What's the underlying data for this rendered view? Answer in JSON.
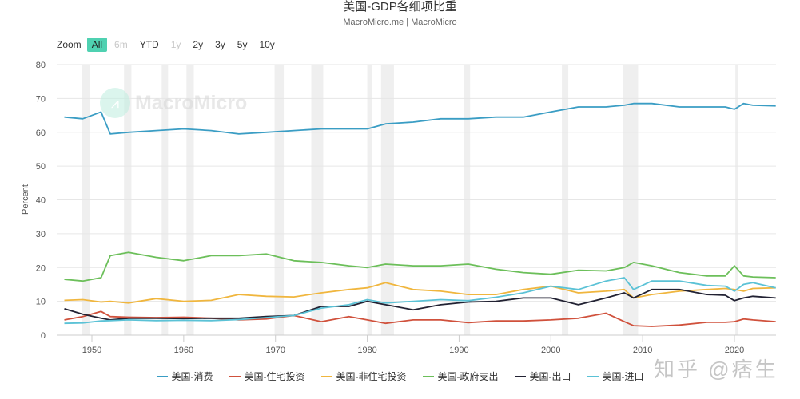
{
  "title": "美国-GDP各细项比重",
  "subtitle": "MacroMicro.me | MacroMicro",
  "zoom": {
    "label": "Zoom",
    "buttons": [
      {
        "label": "All",
        "state": "active"
      },
      {
        "label": "6m",
        "state": "disabled"
      },
      {
        "label": "YTD",
        "state": "normal"
      },
      {
        "label": "1y",
        "state": "disabled"
      },
      {
        "label": "2y",
        "state": "normal"
      },
      {
        "label": "3y",
        "state": "normal"
      },
      {
        "label": "5y",
        "state": "normal"
      },
      {
        "label": "10y",
        "state": "normal"
      }
    ]
  },
  "watermark_logo": "MacroMicro",
  "watermark_text": "知乎 @痞生",
  "colors": {
    "consumption": "#3a9dc4",
    "residential": "#d0513c",
    "nonresidential": "#f0b63e",
    "government": "#6cbf5a",
    "exports": "#222233",
    "imports": "#5bc2d6",
    "recession": "#efefef",
    "active_button": "#4fd1b1"
  },
  "chart_data": {
    "type": "line",
    "title": "美国-GDP各细项比重",
    "subtitle": "MacroMicro.me | MacroMicro",
    "xlabel": "",
    "ylabel": "Percent",
    "ylim": [
      0,
      80
    ],
    "yticks": [
      0,
      10,
      20,
      30,
      40,
      50,
      60,
      70,
      80
    ],
    "xticks": [
      1950,
      1960,
      1970,
      1980,
      1990,
      2000,
      2010,
      2020
    ],
    "xlim": [
      1947,
      2024.5
    ],
    "grid": true,
    "legend_position": "bottom",
    "recession_bands": [
      [
        1948.9,
        1949.8
      ],
      [
        1953.5,
        1954.3
      ],
      [
        1957.6,
        1958.3
      ],
      [
        1960.3,
        1961.1
      ],
      [
        1969.9,
        1970.9
      ],
      [
        1973.9,
        1975.2
      ],
      [
        1980.0,
        1980.5
      ],
      [
        1981.5,
        1982.9
      ],
      [
        1990.5,
        1991.2
      ],
      [
        2001.2,
        2001.9
      ],
      [
        2007.9,
        2009.5
      ],
      [
        2020.1,
        2020.4
      ]
    ],
    "x": [
      1947,
      1949,
      1951,
      1952,
      1954,
      1957,
      1960,
      1963,
      1966,
      1969,
      1972,
      1975,
      1978,
      1980,
      1982,
      1985,
      1988,
      1991,
      1994,
      1997,
      2000,
      2003,
      2006,
      2008,
      2009,
      2011,
      2014,
      2017,
      2019,
      2020,
      2021,
      2022,
      2024.5
    ],
    "series": [
      {
        "name": "美国-消费",
        "key": "consumption",
        "values": [
          64.5,
          64,
          66,
          59.5,
          60,
          60.5,
          61,
          60.5,
          59.5,
          60,
          60.5,
          61,
          61,
          61,
          62.5,
          63,
          64,
          64,
          64.5,
          64.5,
          66,
          67.5,
          67.5,
          68,
          68.5,
          68.5,
          67.5,
          67.5,
          67.5,
          66.8,
          68.5,
          68,
          67.8
        ]
      },
      {
        "name": "美国-住宅投资",
        "key": "residential",
        "values": [
          4.5,
          5.5,
          7,
          5.5,
          5.3,
          5.2,
          5.3,
          5.0,
          4.5,
          4.8,
          5.8,
          4.0,
          5.5,
          4.5,
          3.5,
          4.5,
          4.5,
          3.7,
          4.2,
          4.2,
          4.5,
          5.0,
          6.5,
          4.0,
          2.8,
          2.6,
          3.0,
          3.8,
          3.8,
          4.0,
          4.8,
          4.5,
          4.0
        ]
      },
      {
        "name": "美国-非住宅投资",
        "key": "nonresidential",
        "values": [
          10.3,
          10.5,
          9.8,
          10.0,
          9.5,
          10.8,
          10.0,
          10.3,
          12,
          11.5,
          11.3,
          12.5,
          13.5,
          14,
          15.5,
          13.5,
          13,
          12,
          12,
          13.5,
          14.5,
          12.5,
          13,
          13.5,
          11,
          12,
          13,
          13.5,
          13.8,
          13.5,
          13.0,
          13.8,
          14.0
        ]
      },
      {
        "name": "美国-政府支出",
        "key": "government",
        "values": [
          16.5,
          16,
          17,
          23.5,
          24.5,
          23,
          22,
          23.5,
          23.5,
          24,
          22,
          21.5,
          20.5,
          20,
          21,
          20.5,
          20.5,
          21,
          19.5,
          18.5,
          18,
          19.2,
          19,
          20,
          21.5,
          20.5,
          18.5,
          17.5,
          17.5,
          20.5,
          17.5,
          17.2,
          17.0
        ]
      },
      {
        "name": "美国-出口",
        "key": "exports",
        "values": [
          7.8,
          6.2,
          5.0,
          4.5,
          5.0,
          5.0,
          4.9,
          5.0,
          5.0,
          5.5,
          5.8,
          8.5,
          8.5,
          10,
          9,
          7.5,
          9,
          9.8,
          10,
          11,
          11,
          9.0,
          11,
          12.5,
          11,
          13.5,
          13.5,
          12.0,
          11.8,
          10.2,
          11.0,
          11.5,
          11.0
        ]
      },
      {
        "name": "美国-进口",
        "key": "imports",
        "values": [
          3.5,
          3.6,
          4.2,
          4.3,
          4.5,
          4.3,
          4.4,
          4.3,
          4.6,
          5.2,
          5.8,
          8.0,
          9.0,
          10.5,
          9.5,
          10.0,
          10.5,
          10.2,
          11.2,
          12.5,
          14.5,
          13.5,
          16.0,
          17.0,
          13.5,
          16.0,
          16.0,
          14.7,
          14.5,
          13.0,
          15.0,
          15.5,
          14.0
        ]
      }
    ]
  },
  "axis": {
    "ylabel": "Percent",
    "yticks": [
      "0",
      "10",
      "20",
      "30",
      "40",
      "50",
      "60",
      "70",
      "80"
    ],
    "xticks": [
      "1950",
      "1960",
      "1970",
      "1980",
      "1990",
      "2000",
      "2010",
      "2020"
    ]
  },
  "legend": [
    {
      "label": "美国-消费",
      "key": "consumption"
    },
    {
      "label": "美国-住宅投资",
      "key": "residential"
    },
    {
      "label": "美国-非住宅投资",
      "key": "nonresidential"
    },
    {
      "label": "美国-政府支出",
      "key": "government"
    },
    {
      "label": "美国-出口",
      "key": "exports"
    },
    {
      "label": "美国-进口",
      "key": "imports"
    }
  ]
}
